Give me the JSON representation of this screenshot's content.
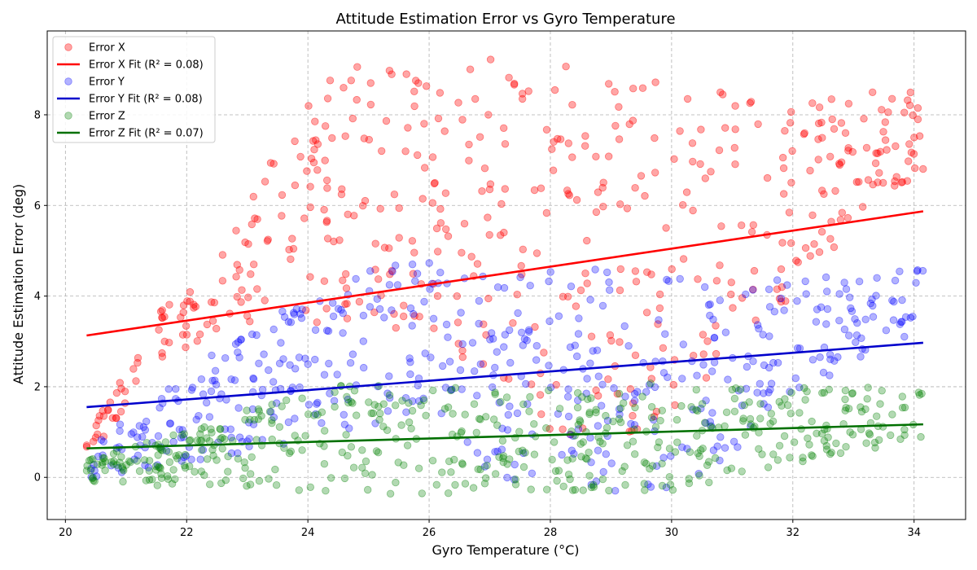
{
  "chart_data": {
    "type": "scatter",
    "title": "Attitude Estimation Error vs Gyro Temperature",
    "xlabel": "Gyro Temperature (°C)",
    "ylabel": "Attitude Estimation Error (deg)",
    "xlim": [
      19.7,
      34.85
    ],
    "ylim": [
      -0.93,
      9.85
    ],
    "x_ticks": [
      20,
      22,
      24,
      26,
      28,
      30,
      32,
      34
    ],
    "y_ticks": [
      0,
      2,
      4,
      6,
      8
    ],
    "grid": true,
    "legend_position": "top-left",
    "x_range": [
      20.35,
      34.15
    ],
    "points_per_series": 500,
    "series": [
      {
        "name": "Error X",
        "type": "scatter",
        "color": "#ff0000",
        "alpha": 0.35,
        "envelope_low": [
          [
            20.35,
            0.4
          ],
          [
            21.5,
            2.4
          ],
          [
            23.0,
            3.4
          ],
          [
            24.0,
            3.4
          ],
          [
            25.0,
            3.5
          ],
          [
            26.0,
            3.0
          ],
          [
            27.0,
            2.3
          ],
          [
            28.0,
            1.0
          ],
          [
            29.0,
            0.8
          ],
          [
            30.0,
            1.0
          ],
          [
            31.0,
            2.8
          ],
          [
            32.0,
            4.0
          ],
          [
            33.0,
            5.5
          ],
          [
            34.15,
            6.8
          ]
        ],
        "envelope_high": [
          [
            20.35,
            1.0
          ],
          [
            21.5,
            3.8
          ],
          [
            22.5,
            4.7
          ],
          [
            23.0,
            6.3
          ],
          [
            24.0,
            8.2
          ],
          [
            24.5,
            9.0
          ],
          [
            25.0,
            9.1
          ],
          [
            26.0,
            8.9
          ],
          [
            27.0,
            9.3
          ],
          [
            28.5,
            9.4
          ],
          [
            30.0,
            8.8
          ],
          [
            31.0,
            8.5
          ],
          [
            32.0,
            8.5
          ],
          [
            33.0,
            8.6
          ],
          [
            34.15,
            8.5
          ]
        ]
      },
      {
        "name": "Error X Fit (R² = 0.08)",
        "type": "line",
        "color": "#ff0000",
        "x": [
          20.35,
          34.15
        ],
        "y": [
          3.13,
          5.87
        ]
      },
      {
        "name": "Error Y",
        "type": "scatter",
        "color": "#0000ff",
        "alpha": 0.3,
        "envelope_low": [
          [
            20.35,
            -0.1
          ],
          [
            22.0,
            0.3
          ],
          [
            24.0,
            0.8
          ],
          [
            26.0,
            1.5
          ],
          [
            27.0,
            0.0
          ],
          [
            28.0,
            -0.2
          ],
          [
            29.0,
            -0.3
          ],
          [
            30.0,
            -0.3
          ],
          [
            31.0,
            0.5
          ],
          [
            32.0,
            1.8
          ],
          [
            33.0,
            2.5
          ],
          [
            34.15,
            3.3
          ]
        ],
        "envelope_high": [
          [
            20.35,
            0.6
          ],
          [
            21.5,
            1.8
          ],
          [
            22.5,
            2.8
          ],
          [
            23.5,
            3.6
          ],
          [
            24.5,
            4.4
          ],
          [
            25.5,
            4.7
          ],
          [
            26.0,
            4.8
          ],
          [
            27.0,
            4.7
          ],
          [
            28.0,
            4.6
          ],
          [
            29.0,
            4.6
          ],
          [
            30.0,
            4.4
          ],
          [
            31.0,
            4.3
          ],
          [
            32.0,
            4.4
          ],
          [
            33.0,
            4.5
          ],
          [
            34.15,
            4.6
          ]
        ]
      },
      {
        "name": "Error Y Fit (R² = 0.08)",
        "type": "line",
        "color": "#0000cc",
        "x": [
          20.35,
          34.15
        ],
        "y": [
          1.55,
          2.97
        ]
      },
      {
        "name": "Error Z",
        "type": "scatter",
        "color": "#008000",
        "alpha": 0.3,
        "envelope_low": [
          [
            20.35,
            -0.2
          ],
          [
            22.0,
            -0.2
          ],
          [
            24.0,
            -0.3
          ],
          [
            26.0,
            -0.4
          ],
          [
            28.0,
            -0.3
          ],
          [
            30.0,
            -0.3
          ],
          [
            32.0,
            0.3
          ],
          [
            34.15,
            0.8
          ]
        ],
        "envelope_high": [
          [
            20.35,
            0.4
          ],
          [
            21.5,
            0.9
          ],
          [
            22.5,
            1.2
          ],
          [
            23.5,
            1.8
          ],
          [
            24.5,
            2.1
          ],
          [
            26.0,
            2.0
          ],
          [
            28.0,
            2.0
          ],
          [
            30.0,
            2.1
          ],
          [
            31.0,
            2.0
          ],
          [
            32.0,
            2.0
          ],
          [
            33.0,
            2.0
          ],
          [
            34.15,
            2.0
          ]
        ]
      },
      {
        "name": "Error Z Fit (R² = 0.07)",
        "type": "line",
        "color": "#007000",
        "x": [
          20.35,
          34.15
        ],
        "y": [
          0.64,
          1.17
        ]
      }
    ]
  }
}
